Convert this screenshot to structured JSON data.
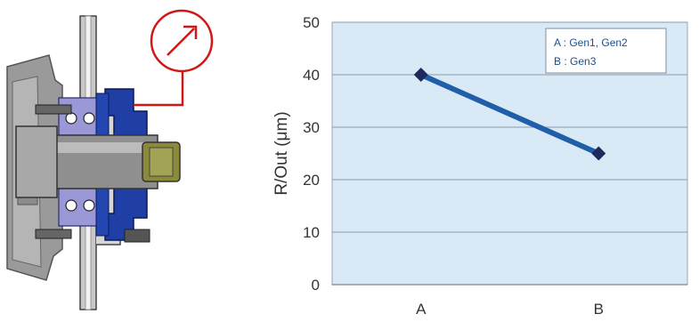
{
  "figure": {
    "gauge_icon": "dial-gauge-icon",
    "colors": {
      "hub_blue": "#1f3fa6",
      "bearing_lavender": "#9b98d8",
      "knuckle_gray": "#9a9a9a",
      "nut_olive": "#8a8a3a",
      "gauge_red": "#d01818"
    }
  },
  "chart_data": {
    "type": "line",
    "categories": [
      "A",
      "B"
    ],
    "series": [
      {
        "values": [
          40,
          25
        ],
        "color": "#1f5faa",
        "marker_color": "#1e2a5c"
      }
    ],
    "ylabel": "R/Out  (μm)",
    "xlabel": "",
    "ylim": [
      0,
      50
    ],
    "yticks": [
      0,
      10,
      20,
      30,
      40,
      50
    ],
    "grid": true,
    "plot_background": "#d9e9f5",
    "legend": {
      "placement": "top-right",
      "entries": [
        "A : Gen1, Gen2",
        "B : Gen3"
      ]
    }
  }
}
